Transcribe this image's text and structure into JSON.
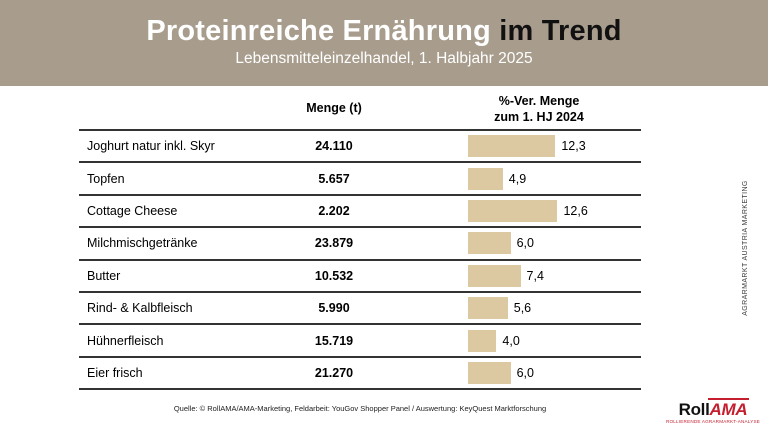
{
  "header": {
    "title_white": "Proteinreiche Ernährung",
    "title_black": " im Trend",
    "subtitle": "Lebensmitteleinzelhandel, 1. Halbjahr 2025"
  },
  "columns": {
    "menge": "Menge (t)",
    "change_line1": "%-Ver. Menge",
    "change_line2": "zum 1. HJ 2024"
  },
  "rows": [
    {
      "label": "Joghurt natur inkl. Skyr",
      "menge": "24.110",
      "change": "12,3",
      "change_value": 12.3
    },
    {
      "label": "Topfen",
      "menge": "5.657",
      "change": "4,9",
      "change_value": 4.9
    },
    {
      "label": "Cottage Cheese",
      "menge": "2.202",
      "change": "12,6",
      "change_value": 12.6
    },
    {
      "label": "Milchmischgetränke",
      "menge": "23.879",
      "change": "6,0",
      "change_value": 6.0
    },
    {
      "label": "Butter",
      "menge": "10.532",
      "change": "7,4",
      "change_value": 7.4
    },
    {
      "label": "Rind- & Kalbfleisch",
      "menge": "5.990",
      "change": "5,6",
      "change_value": 5.6
    },
    {
      "label": "Hühnerfleisch",
      "menge": "15.719",
      "change": "4,0",
      "change_value": 4.0
    },
    {
      "label": "Eier frisch",
      "menge": "21.270",
      "change": "6,0",
      "change_value": 6.0
    }
  ],
  "chart_data": {
    "type": "bar",
    "orientation": "horizontal",
    "title": "Proteinreiche Ernährung im Trend",
    "subtitle": "Lebensmitteleinzelhandel, 1. Halbjahr 2025",
    "categories": [
      "Joghurt natur inkl. Skyr",
      "Topfen",
      "Cottage Cheese",
      "Milchmischgetränke",
      "Butter",
      "Rind- & Kalbfleisch",
      "Hühnerfleisch",
      "Eier frisch"
    ],
    "series": [
      {
        "name": "Menge (t)",
        "values": [
          24110,
          5657,
          2202,
          23879,
          10532,
          5990,
          15719,
          21270
        ]
      },
      {
        "name": "%-Ver. Menge zum 1. HJ 2024",
        "values": [
          12.3,
          4.9,
          12.6,
          6.0,
          7.4,
          5.6,
          4.0,
          6.0
        ]
      }
    ],
    "xlim": [
      0,
      13
    ],
    "grid": false,
    "legend": false,
    "data_labels": true
  },
  "footer": {
    "source": "Quelle: © RollAMA/AMA-Marketing, Feldarbeit: YouGov Shopper Panel / Auswertung: KeyQuest Marktforschung"
  },
  "side": {
    "vertical_text": "AGRARMARKT AUSTRIA MARKETING"
  },
  "logo": {
    "part1": "Roll",
    "part2": "AMA",
    "tagline": "ROLLIERENDE AGRARMARKT-ANALYSE"
  },
  "colors": {
    "header_bg": "#a89d8d",
    "bar": "#ddc9a1",
    "line": "#333333",
    "accent_red": "#c41e2f"
  }
}
